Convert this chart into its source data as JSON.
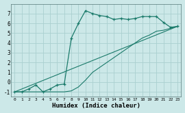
{
  "xlabel": "Humidex (Indice chaleur)",
  "background_color": "#cce8e8",
  "grid_color": "#aad0d0",
  "line_color": "#1a7a6a",
  "xlim": [
    -0.5,
    23.5
  ],
  "ylim": [
    -1.5,
    8.0
  ],
  "yticks": [
    -1,
    0,
    1,
    2,
    3,
    4,
    5,
    6,
    7
  ],
  "xticks": [
    0,
    1,
    2,
    3,
    4,
    5,
    6,
    7,
    8,
    9,
    10,
    11,
    12,
    13,
    14,
    15,
    16,
    17,
    18,
    19,
    20,
    21,
    22,
    23
  ],
  "series1_x": [
    0,
    1,
    2,
    3,
    4,
    5,
    6,
    7,
    8,
    9,
    10,
    11,
    12,
    13,
    14,
    15,
    16,
    17,
    18,
    19,
    20,
    21,
    22,
    23
  ],
  "series1_y": [
    -1.0,
    -1.0,
    -0.7,
    -0.3,
    -1.0,
    -0.7,
    -0.3,
    -0.2,
    4.5,
    6.0,
    7.3,
    7.0,
    6.8,
    6.7,
    6.4,
    6.5,
    6.4,
    6.5,
    6.7,
    6.7,
    6.7,
    6.1,
    5.6,
    5.7
  ],
  "series2_x": [
    0,
    23
  ],
  "series2_y": [
    -1.0,
    5.7
  ],
  "series3_x": [
    0,
    1,
    2,
    3,
    4,
    5,
    6,
    7,
    8,
    9,
    10,
    11,
    12,
    13,
    14,
    15,
    16,
    17,
    18,
    19,
    20,
    21,
    22,
    23
  ],
  "series3_y": [
    -1.0,
    -1.0,
    -1.0,
    -1.0,
    -1.0,
    -1.0,
    -1.0,
    -1.0,
    -0.9,
    -0.5,
    0.2,
    1.0,
    1.5,
    2.0,
    2.5,
    3.0,
    3.5,
    4.0,
    4.5,
    4.8,
    5.2,
    5.3,
    5.5,
    5.7
  ]
}
